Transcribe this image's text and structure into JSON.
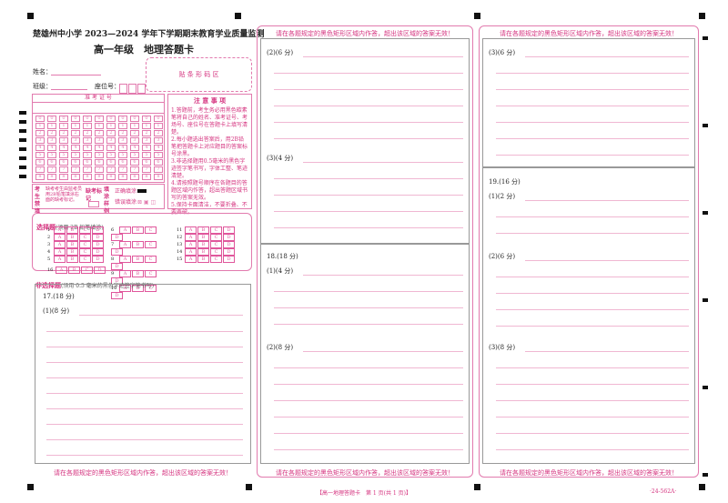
{
  "header": {
    "school_title": "楚雄州中小学 2023—2024 学年下学期期末教育学业质量监测",
    "subtitle": "高一年级　地理答题卡"
  },
  "info": {
    "name_label": "姓名：",
    "class_label": "班级：",
    "seat_label": "座位号：",
    "barcode_label": "贴 条 形 码 区",
    "exam_no_label": "准 考 证 号"
  },
  "notes": {
    "title": "注 意 事 项",
    "items": [
      "1.答题前，考生务必用黑色碳素笔将自己的姓名、准考证号、考场号、座位号在答题卡上填写清楚。",
      "2.每小题选出答案后，用2B铅笔把答题卡上对应题目的答案标号涂黑。",
      "3.非选择题用0.5毫米的黑色字迹签字笔书写，字体工整、笔迹清楚。",
      "4.请按照题号顺序在各题目的答题区域内作答，超出答题区域书写的答案无效。",
      "5.保持卡面清洁，不要折叠、不要弄破。"
    ]
  },
  "side_labels": {
    "candidate": "考生禁填",
    "candidate_note": "缺考考生由监考员用2B铅笔填涂右面的缺考标记。",
    "absent_mark": "缺考标记",
    "fill_sample": "填涂样例",
    "correct_label": "正确填涂",
    "wrong_label": "错误填涂"
  },
  "choice": {
    "title": "选择题",
    "note": "(须用 2B 铅笔填涂)",
    "options": [
      "A",
      "B",
      "C",
      "D"
    ],
    "numbers": [
      "1",
      "2",
      "3",
      "4",
      "5",
      "6",
      "7",
      "8",
      "9",
      "10",
      "11",
      "12",
      "13",
      "14",
      "15",
      "16"
    ]
  },
  "nonchoice": {
    "title": "非选择题",
    "note": "(须用 0.5 毫米的黑色字迹签字笔书写)"
  },
  "warning": "请在各题规定的黑色矩形区域内作答，超出该区域的答案无效！",
  "questions": {
    "q17": "17.(18 分)",
    "q17_1": "(1)(8 分)",
    "q17_2": "(2)(6 分)",
    "q17_3": "(3)(4 分)",
    "q18": "18.(18 分)",
    "q18_1": "(1)(4 分)",
    "q18_2": "(2)(8 分)",
    "q18_3": "(3)(6 分)",
    "q19": "19.(16 分)",
    "q19_1": "(1)(2 分)",
    "q19_2": "(2)(6 分)",
    "q19_3": "(3)(8 分)"
  },
  "footer": {
    "page": "【高一地理答题卡　第 1 页(共 1 页)】",
    "code": "·24-562A·"
  }
}
